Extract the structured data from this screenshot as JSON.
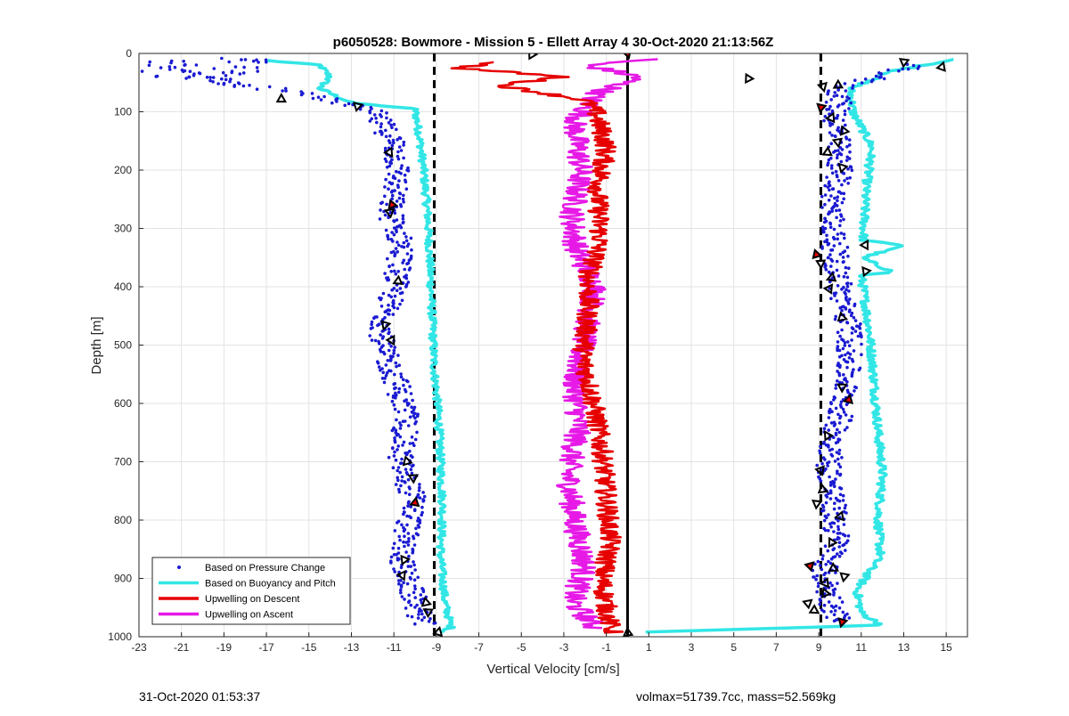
{
  "chart_data": {
    "type": "scatter",
    "title": "p6050528: Bowmore - Mission 5 - Ellett Array 4 30-Oct-2020 21:13:56Z",
    "xlabel": "Vertical Velocity [cm/s]",
    "ylabel": "Depth [m]",
    "xlim": [
      -23,
      16
    ],
    "ylim": [
      0,
      1000
    ],
    "y_reversed": true,
    "grid": true,
    "x_ticks": [
      -23,
      -21,
      -19,
      -17,
      -15,
      -13,
      -11,
      -9,
      -7,
      -5,
      -3,
      -1,
      1,
      3,
      5,
      7,
      9,
      11,
      13,
      15
    ],
    "y_ticks": [
      0,
      100,
      200,
      300,
      400,
      500,
      600,
      700,
      800,
      900,
      1000
    ],
    "legend_position": "bottom-left",
    "reference_lines": [
      {
        "style": "dashed",
        "color": "#000000",
        "x": -9.1
      },
      {
        "style": "dashed",
        "color": "#000000",
        "x": 9.1
      },
      {
        "style": "solid",
        "color": "#000000",
        "x": 0
      }
    ],
    "series": [
      {
        "name": "Based on Pressure Change",
        "style": "dots",
        "color": "#1a1ad2",
        "descent_profile": [
          [
            -22,
            20
          ],
          [
            -20,
            40
          ],
          [
            -18,
            55
          ],
          [
            -15,
            70
          ],
          [
            -13.5,
            85
          ],
          [
            -12,
            100
          ],
          [
            -11,
            150
          ],
          [
            -10.8,
            200
          ],
          [
            -11.2,
            270
          ],
          [
            -10.6,
            330
          ],
          [
            -10.9,
            390
          ],
          [
            -11.4,
            450
          ],
          [
            -11.6,
            500
          ],
          [
            -10.9,
            560
          ],
          [
            -10.4,
            620
          ],
          [
            -10.7,
            700
          ],
          [
            -10,
            770
          ],
          [
            -10.5,
            830
          ],
          [
            -10.6,
            880
          ],
          [
            -10.1,
            930
          ],
          [
            -9.6,
            980
          ]
        ],
        "ascent_profile": [
          [
            13.5,
            20
          ],
          [
            10,
            60
          ],
          [
            9.8,
            120
          ],
          [
            10,
            200
          ],
          [
            9.6,
            270
          ],
          [
            9.8,
            350
          ],
          [
            10.1,
            420
          ],
          [
            10.5,
            480
          ],
          [
            10.3,
            560
          ],
          [
            10,
            620
          ],
          [
            9.5,
            700
          ],
          [
            9.7,
            780
          ],
          [
            9.9,
            840
          ],
          [
            9.2,
            890
          ],
          [
            9.6,
            940
          ],
          [
            10,
            975
          ]
        ]
      },
      {
        "name": "Based on Buoyancy and Pitch",
        "style": "line",
        "color": "#33e6e6",
        "descent_profile": [
          [
            -17,
            12
          ],
          [
            -14.5,
            20
          ],
          [
            -14,
            40
          ],
          [
            -14.5,
            60
          ],
          [
            -13,
            85
          ],
          [
            -10,
            95
          ],
          [
            -9.8,
            140
          ],
          [
            -9.6,
            200
          ],
          [
            -9.4,
            280
          ],
          [
            -9.3,
            360
          ],
          [
            -9.2,
            450
          ],
          [
            -9.1,
            540
          ],
          [
            -8.9,
            620
          ],
          [
            -8.8,
            700
          ],
          [
            -8.7,
            780
          ],
          [
            -8.8,
            860
          ],
          [
            -8.6,
            940
          ],
          [
            -8.3,
            985
          ],
          [
            -8.8,
            993
          ]
        ],
        "ascent_profile": [
          [
            15.5,
            10
          ],
          [
            12.5,
            30
          ],
          [
            10.5,
            60
          ],
          [
            10.6,
            100
          ],
          [
            11.5,
            160
          ],
          [
            11.2,
            240
          ],
          [
            11.1,
            320
          ],
          [
            13,
            330
          ],
          [
            11,
            350
          ],
          [
            12.5,
            375
          ],
          [
            11,
            380
          ],
          [
            11.4,
            480
          ],
          [
            11.6,
            560
          ],
          [
            11.8,
            650
          ],
          [
            12,
            720
          ],
          [
            11.8,
            800
          ],
          [
            11.9,
            860
          ],
          [
            10.8,
            920
          ],
          [
            11,
            960
          ],
          [
            12,
            980
          ],
          [
            0,
            993
          ]
        ]
      },
      {
        "name": "Upwelling on Descent",
        "style": "line",
        "color": "#e60000",
        "profile": [
          [
            -6,
            15
          ],
          [
            -8,
            25
          ],
          [
            -3,
            40
          ],
          [
            -6,
            55
          ],
          [
            -2,
            80
          ],
          [
            -1.5,
            100
          ],
          [
            -1,
            160
          ],
          [
            -1.4,
            240
          ],
          [
            -1.3,
            320
          ],
          [
            -1.8,
            380
          ],
          [
            -1.9,
            460
          ],
          [
            -2.1,
            520
          ],
          [
            -1.6,
            600
          ],
          [
            -1.2,
            680
          ],
          [
            -1,
            760
          ],
          [
            -0.8,
            840
          ],
          [
            -1.2,
            900
          ],
          [
            -0.9,
            970
          ],
          [
            -0.7,
            993
          ]
        ]
      },
      {
        "name": "Upwelling on Ascent",
        "style": "line",
        "color": "#e619e6",
        "profile": [
          [
            1,
            10
          ],
          [
            -2,
            20
          ],
          [
            0.5,
            40
          ],
          [
            -1.5,
            70
          ],
          [
            -2.5,
            120
          ],
          [
            -2.2,
            200
          ],
          [
            -2.6,
            280
          ],
          [
            -2.4,
            340
          ],
          [
            -1.5,
            400
          ],
          [
            -2,
            480
          ],
          [
            -2.5,
            560
          ],
          [
            -2.3,
            640
          ],
          [
            -2.8,
            720
          ],
          [
            -2.5,
            800
          ],
          [
            -2,
            880
          ],
          [
            -2.6,
            940
          ],
          [
            -1.5,
            985
          ]
        ]
      }
    ],
    "markers": [
      {
        "x": -16.3,
        "y": 78
      },
      {
        "x": -12.7,
        "y": 90
      },
      {
        "x": -11.2,
        "y": 170
      },
      {
        "x": -11.1,
        "y": 260
      },
      {
        "x": -11.2,
        "y": 272
      },
      {
        "x": -10.8,
        "y": 390
      },
      {
        "x": -11.4,
        "y": 465
      },
      {
        "x": -11.1,
        "y": 492
      },
      {
        "x": -10.4,
        "y": 700
      },
      {
        "x": -10.1,
        "y": 727
      },
      {
        "x": -10,
        "y": 770
      },
      {
        "x": -10.5,
        "y": 868
      },
      {
        "x": -10.6,
        "y": 895
      },
      {
        "x": -9.5,
        "y": 942
      },
      {
        "x": -9.4,
        "y": 957
      },
      {
        "x": -8.9,
        "y": 992
      },
      {
        "x": -4.5,
        "y": 2
      },
      {
        "x": 0,
        "y": 0
      },
      {
        "x": 0,
        "y": 994
      },
      {
        "x": 13,
        "y": 14
      },
      {
        "x": 14.8,
        "y": 23
      },
      {
        "x": 5.7,
        "y": 43
      },
      {
        "x": 9.2,
        "y": 57
      },
      {
        "x": 9.9,
        "y": 55
      },
      {
        "x": 9.1,
        "y": 92
      },
      {
        "x": 9.6,
        "y": 110
      },
      {
        "x": 10.2,
        "y": 133
      },
      {
        "x": 9.9,
        "y": 152
      },
      {
        "x": 9.4,
        "y": 170
      },
      {
        "x": 10.1,
        "y": 195
      },
      {
        "x": 11.2,
        "y": 328
      },
      {
        "x": 8.9,
        "y": 345
      },
      {
        "x": 9.1,
        "y": 360
      },
      {
        "x": 9.6,
        "y": 385
      },
      {
        "x": 11.2,
        "y": 373
      },
      {
        "x": 9.5,
        "y": 403
      },
      {
        "x": 10.1,
        "y": 453
      },
      {
        "x": 10.1,
        "y": 572
      },
      {
        "x": 10.4,
        "y": 594
      },
      {
        "x": 9.4,
        "y": 655
      },
      {
        "x": 9.1,
        "y": 714
      },
      {
        "x": 9.2,
        "y": 748
      },
      {
        "x": 8.9,
        "y": 772
      },
      {
        "x": 10,
        "y": 794
      },
      {
        "x": 9.6,
        "y": 838
      },
      {
        "x": 8.6,
        "y": 878
      },
      {
        "x": 9.7,
        "y": 883
      },
      {
        "x": 10.2,
        "y": 897
      },
      {
        "x": 9.3,
        "y": 908
      },
      {
        "x": 9.3,
        "y": 925
      },
      {
        "x": 8.5,
        "y": 942
      },
      {
        "x": 8.8,
        "y": 955
      },
      {
        "x": 10.1,
        "y": 975
      }
    ]
  },
  "footer": {
    "timestamp": "31-Oct-2020 01:53:37",
    "stats": "volmax=51739.7cc, mass=52.569kg"
  }
}
